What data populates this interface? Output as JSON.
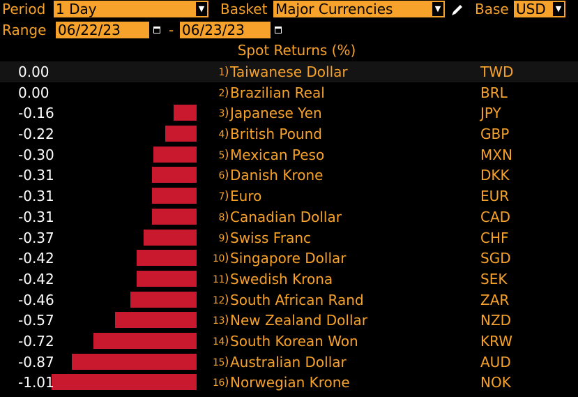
{
  "toolbar": {
    "period_label": "Period",
    "period_value": "1 Day",
    "basket_label": "Basket",
    "basket_value": "Major Currencies",
    "base_label": "Base",
    "base_value": "USD",
    "range_label": "Range",
    "start_date": "06/22/23",
    "date_separator": "-",
    "end_date": "06/23/23"
  },
  "table": {
    "title": "Spot Returns (%)",
    "rows": [
      {
        "rank": "1",
        "value": "0.00",
        "name": "Taiwanese Dollar",
        "code": "TWD",
        "ret": 0.0
      },
      {
        "rank": "2",
        "value": "0.00",
        "name": "Brazilian Real",
        "code": "BRL",
        "ret": 0.0
      },
      {
        "rank": "3",
        "value": "-0.16",
        "name": "Japanese Yen",
        "code": "JPY",
        "ret": -0.16
      },
      {
        "rank": "4",
        "value": "-0.22",
        "name": "British Pound",
        "code": "GBP",
        "ret": -0.22
      },
      {
        "rank": "5",
        "value": "-0.30",
        "name": "Mexican Peso",
        "code": "MXN",
        "ret": -0.3
      },
      {
        "rank": "6",
        "value": "-0.31",
        "name": "Danish Krone",
        "code": "DKK",
        "ret": -0.31
      },
      {
        "rank": "7",
        "value": "-0.31",
        "name": "Euro",
        "code": "EUR",
        "ret": -0.31
      },
      {
        "rank": "8",
        "value": "-0.31",
        "name": "Canadian Dollar",
        "code": "CAD",
        "ret": -0.31
      },
      {
        "rank": "9",
        "value": "-0.37",
        "name": "Swiss Franc",
        "code": "CHF",
        "ret": -0.37
      },
      {
        "rank": "10",
        "value": "-0.42",
        "name": "Singapore Dollar",
        "code": "SGD",
        "ret": -0.42
      },
      {
        "rank": "11",
        "value": "-0.42",
        "name": "Swedish Krona",
        "code": "SEK",
        "ret": -0.42
      },
      {
        "rank": "12",
        "value": "-0.46",
        "name": "South African Rand",
        "code": "ZAR",
        "ret": -0.46
      },
      {
        "rank": "13",
        "value": "-0.57",
        "name": "New Zealand Dollar",
        "code": "NZD",
        "ret": -0.57
      },
      {
        "rank": "14",
        "value": "-0.72",
        "name": "South Korean Won",
        "code": "KRW",
        "ret": -0.72
      },
      {
        "rank": "15",
        "value": "-0.87",
        "name": "Australian Dollar",
        "code": "AUD",
        "ret": -0.87
      },
      {
        "rank": "16",
        "value": "-1.01",
        "name": "Norwegian Krone",
        "code": "NOK",
        "ret": -1.01
      }
    ]
  },
  "colors": {
    "accent": "#f7a22b",
    "bar_negative": "#c8192f",
    "value_text": "#ffffff",
    "background": "#000000"
  },
  "icons": {
    "dropdown": "chevron-down-icon",
    "calendar": "calendar-icon",
    "pencil": "pencil-icon"
  }
}
